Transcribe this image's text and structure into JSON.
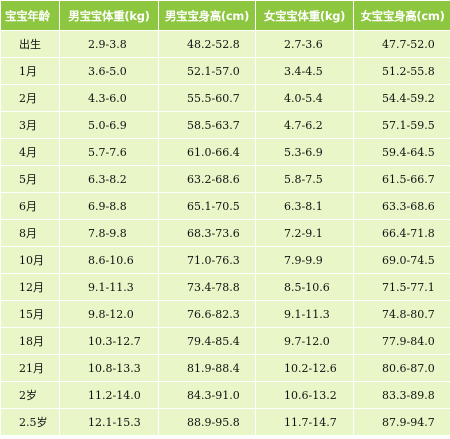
{
  "table": {
    "headers": [
      "宝宝年龄",
      "男宝宝体重(kg)",
      "男宝宝身高(cm)",
      "女宝宝体重(kg)",
      "女宝宝身高(cm)"
    ],
    "rows": [
      [
        "出生",
        "2.9-3.8",
        "48.2-52.8",
        "2.7-3.6",
        "47.7-52.0"
      ],
      [
        "1月",
        "3.6-5.0",
        "52.1-57.0",
        "3.4-4.5",
        "51.2-55.8"
      ],
      [
        "2月",
        "4.3-6.0",
        "55.5-60.7",
        "4.0-5.4",
        "54.4-59.2"
      ],
      [
        "3月",
        "5.0-6.9",
        "58.5-63.7",
        "4.7-6.2",
        "57.1-59.5"
      ],
      [
        "4月",
        "5.7-7.6",
        "61.0-66.4",
        "5.3-6.9",
        "59.4-64.5"
      ],
      [
        "5月",
        "6.3-8.2",
        "63.2-68.6",
        "5.8-7.5",
        "61.5-66.7"
      ],
      [
        "6月",
        "6.9-8.8",
        "65.1-70.5",
        "6.3-8.1",
        "63.3-68.6"
      ],
      [
        "8月",
        "7.8-9.8",
        "68.3-73.6",
        "7.2-9.1",
        "66.4-71.8"
      ],
      [
        "10月",
        "8.6-10.6",
        "71.0-76.3",
        "7.9-9.9",
        "69.0-74.5"
      ],
      [
        "12月",
        "9.1-11.3",
        "73.4-78.8",
        "8.5-10.6",
        "71.5-77.1"
      ],
      [
        "15月",
        "9.8-12.0",
        "76.6-82.3",
        "9.1-11.3",
        "74.8-80.7"
      ],
      [
        "18月",
        "10.3-12.7",
        "79.4-85.4",
        "9.7-12.0",
        "77.9-84.0"
      ],
      [
        "21月",
        "10.8-13.3",
        "81.9-88.4",
        "10.2-12.6",
        "80.6-87.0"
      ],
      [
        "2岁",
        "11.2-14.0",
        "84.3-91.0",
        "10.6-13.2",
        "83.3-89.8"
      ],
      [
        "2.5岁",
        "12.1-15.3",
        "88.9-95.8",
        "11.7-14.7",
        "87.9-94.7"
      ]
    ]
  },
  "colors": {
    "header_bg": "#8dc63f",
    "header_text": "#ffffff",
    "cell_bg": "#e9f6c8",
    "grid_line": "#ffffff"
  }
}
